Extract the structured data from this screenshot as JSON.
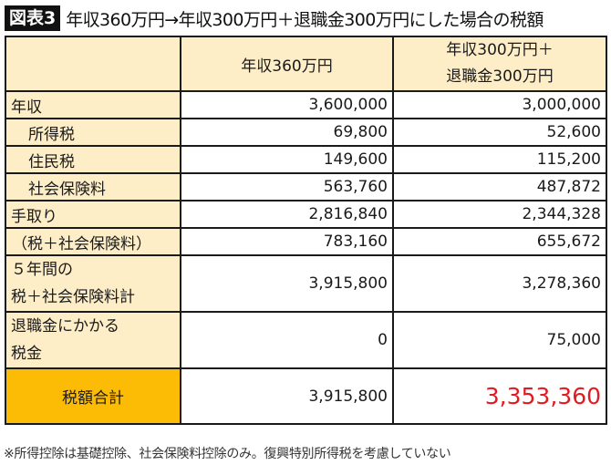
{
  "title": {
    "badge": "図表3",
    "text": "年収360万円→年収300万円＋退職金300万円にした場合の税額"
  },
  "table": {
    "headers": [
      "",
      "年収360万円",
      [
        "年収300万円＋",
        "退職金300万円"
      ]
    ],
    "rows": [
      {
        "label": [
          "年収"
        ],
        "col1": "3,600,000",
        "col2": "3,000,000"
      },
      {
        "label": [
          "所得税"
        ],
        "col1": "69,800",
        "col2": "52,600"
      },
      {
        "label": [
          "住民税"
        ],
        "col1": "149,600",
        "col2": "115,200"
      },
      {
        "label": [
          "社会保険料"
        ],
        "col1": "563,760",
        "col2": "487,872"
      },
      {
        "label": [
          "手取り"
        ],
        "col1": "2,816,840",
        "col2": "2,344,328"
      },
      {
        "label": [
          "（税＋社会保険料）"
        ],
        "col1": "783,160",
        "col2": "655,672"
      },
      {
        "label": [
          "５年間の",
          "税＋社会保険料計"
        ],
        "col1": "3,915,800",
        "col2": "3,278,360"
      },
      {
        "label": [
          "退職金にかかる",
          "税金"
        ],
        "col1": "0",
        "col2": "75,000"
      },
      {
        "label": [
          "税額合計"
        ],
        "col1": "3,915,800",
        "col2": "3,353,360"
      }
    ]
  },
  "colors": {
    "label_bg": "#fdeec8",
    "total_bg": "#fcbc05",
    "highlight_red": "#e21b23"
  },
  "note": "※所得控除は基礎控除、社会保険料控除のみ。復興特別所得税を考慮していない"
}
